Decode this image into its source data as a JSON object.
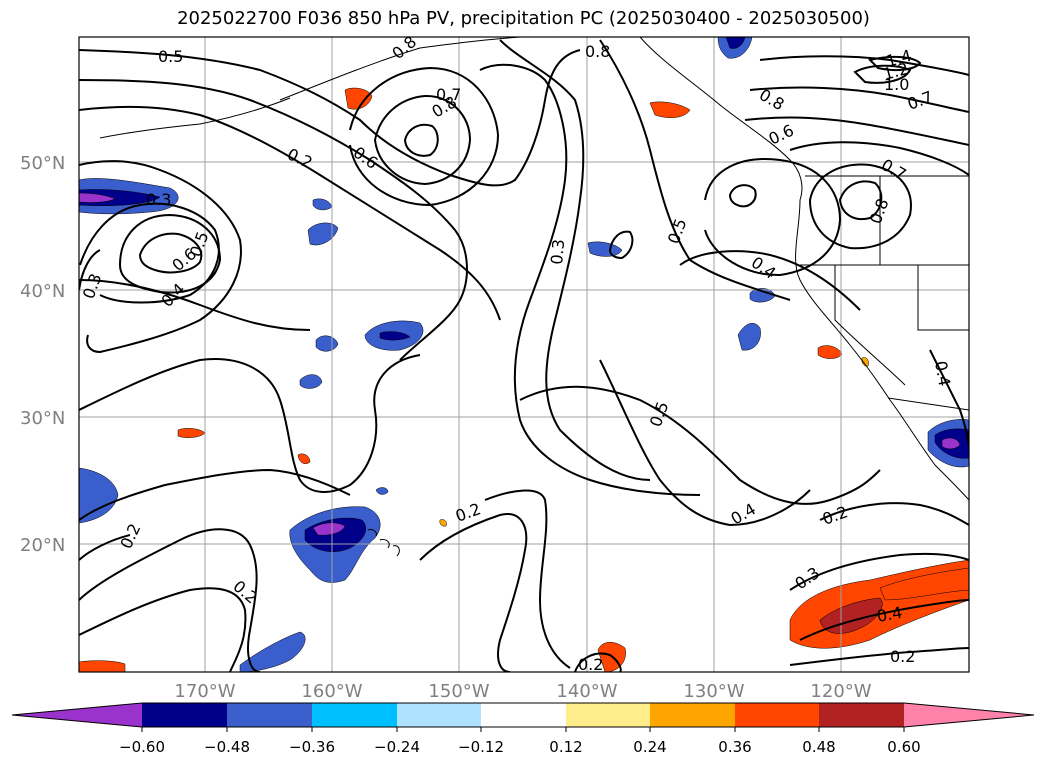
{
  "title": "2025022700 F036 850 hPa PV, precipitation PC (2025030400 - 2025030500)",
  "colors": {
    "neg_060": "#9933cc",
    "neg_048": "#00008b",
    "neg_036": "#3a5fcd",
    "neg_024": "#00bfff",
    "neg_012": "#b0e2ff",
    "zero": "#ffffff",
    "pos_012": "#ffec8b",
    "pos_024": "#ffa500",
    "pos_036": "#ff4500",
    "pos_048": "#b22222",
    "pos_060": "#ff82ab",
    "grid": "#a0a0a0"
  },
  "lat_labels": [
    "50°N",
    "40°N",
    "30°N",
    "20°N"
  ],
  "lon_labels": [
    "170°W",
    "160°W",
    "150°W",
    "140°W",
    "130°W",
    "120°W"
  ],
  "colorbar_labels": [
    "−0.60",
    "−0.48",
    "−0.36",
    "−0.24",
    "−0.12",
    "0.12",
    "0.24",
    "0.36",
    "0.48",
    "0.60"
  ],
  "contour_labels": [
    {
      "text": "0.5"
    },
    {
      "text": "0.8"
    },
    {
      "text": "0.7"
    },
    {
      "text": "0.8"
    },
    {
      "text": "0.2"
    },
    {
      "text": "0.6"
    },
    {
      "text": "0.3"
    },
    {
      "text": "0.6"
    },
    {
      "text": "0.5"
    },
    {
      "text": "0.4"
    },
    {
      "text": "0.3"
    },
    {
      "text": "0.3"
    },
    {
      "text": "0.5"
    },
    {
      "text": "0.8"
    },
    {
      "text": "1.4"
    },
    {
      "text": "1.2"
    },
    {
      "text": "1.0"
    },
    {
      "text": "0.8"
    },
    {
      "text": "0.7"
    },
    {
      "text": "0.6"
    },
    {
      "text": "0.7"
    },
    {
      "text": "0.8"
    },
    {
      "text": "0.4"
    },
    {
      "text": "0.4"
    },
    {
      "text": "0.5"
    },
    {
      "text": "0.2"
    },
    {
      "text": "0.2"
    },
    {
      "text": "0.2"
    },
    {
      "text": "0.4"
    },
    {
      "text": "0.2"
    },
    {
      "text": "0.3"
    },
    {
      "text": "0.4"
    },
    {
      "text": "0.2"
    },
    {
      "text": "0.2"
    }
  ]
}
